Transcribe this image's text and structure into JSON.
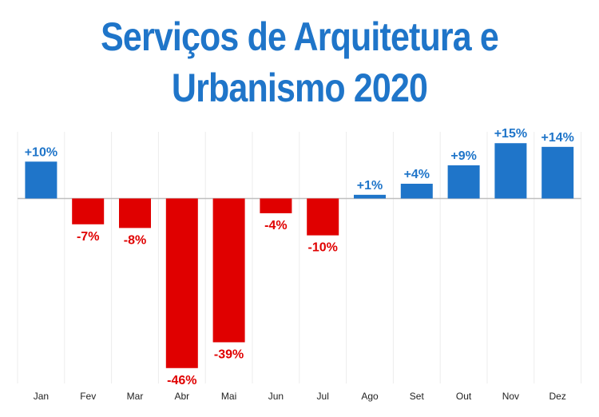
{
  "chart_data": {
    "type": "bar",
    "title_line1": "Serviços de Arquitetura e",
    "title_line2": "Urbanismo 2020",
    "categories": [
      "Jan",
      "Fev",
      "Mar",
      "Abr",
      "Mai",
      "Jun",
      "Jul",
      "Ago",
      "Set",
      "Out",
      "Nov",
      "Dez"
    ],
    "values": [
      10,
      -7,
      -8,
      -46,
      -39,
      -4,
      -10,
      1,
      4,
      9,
      15,
      14
    ],
    "data_labels": [
      "+10%",
      "-7%",
      "-8%",
      "-46%",
      "-39%",
      "-4%",
      "-10%",
      "+1%",
      "+4%",
      "+9%",
      "+15%",
      "+14%"
    ],
    "xlabel": "",
    "ylabel": "",
    "ylim": [
      -48,
      17
    ],
    "grid": "vertical",
    "legend": "none",
    "colors": {
      "positive": "#1f75c9",
      "negative": "#e00000",
      "title": "#1f75c9"
    }
  }
}
